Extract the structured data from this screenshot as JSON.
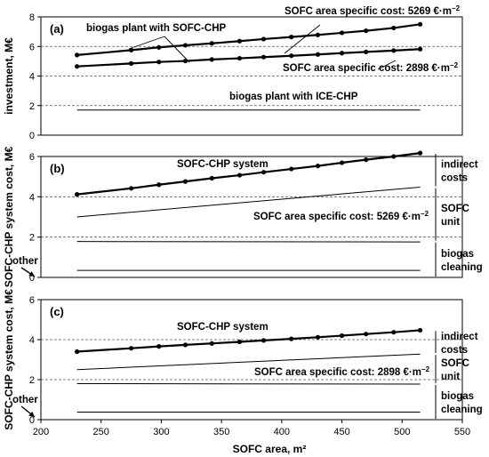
{
  "chart_data": [
    {
      "type": "line",
      "panel_label": "(a)",
      "ylabel": "investment, M€",
      "xlim": [
        200,
        550
      ],
      "ylim": [
        0,
        8
      ],
      "yticks": [
        0,
        2,
        4,
        6,
        8
      ],
      "grid": "horizontal-dashed",
      "series": [
        {
          "style": "thick-markers",
          "x": [
            230,
            275,
            298,
            320,
            342,
            365,
            385,
            408,
            430,
            450,
            470,
            493,
            515
          ],
          "y": [
            5.42,
            5.75,
            5.94,
            6.08,
            6.21,
            6.36,
            6.5,
            6.64,
            6.78,
            6.92,
            7.06,
            7.25,
            7.5
          ]
        },
        {
          "style": "thick-markers",
          "x": [
            230,
            275,
            298,
            320,
            342,
            365,
            385,
            408,
            430,
            450,
            470,
            493,
            515
          ],
          "y": [
            4.65,
            4.85,
            4.95,
            5.02,
            5.12,
            5.2,
            5.28,
            5.37,
            5.46,
            5.55,
            5.63,
            5.72,
            5.82
          ]
        },
        {
          "style": "thin",
          "x": [
            230,
            515
          ],
          "y": [
            1.7,
            1.7
          ]
        }
      ],
      "annotations": [
        {
          "text": "biogas plant with SOFC-CHP"
        },
        {
          "text": "SOFC area specific cost: 5269 €·m"
        },
        {
          "text": "SOFC area specific cost: 2898 €·m"
        },
        {
          "text": "biogas plant with ICE-CHP"
        }
      ]
    },
    {
      "type": "line",
      "panel_label": "(b)",
      "ylabel": "SOFC-CHP system cost, M€",
      "xlim": [
        200,
        550
      ],
      "ylim": [
        0,
        6
      ],
      "yticks": [
        0,
        2,
        4,
        6
      ],
      "grid": "horizontal-dashed",
      "series": [
        {
          "style": "thick-markers",
          "x": [
            230,
            275,
            298,
            320,
            342,
            365,
            385,
            408,
            430,
            450,
            470,
            493,
            515
          ],
          "y": [
            4.12,
            4.42,
            4.6,
            4.76,
            4.92,
            5.07,
            5.22,
            5.38,
            5.53,
            5.69,
            5.84,
            6.0,
            6.17
          ]
        },
        {
          "style": "thin",
          "x": [
            230,
            515
          ],
          "y": [
            3.0,
            4.48
          ]
        },
        {
          "style": "thin",
          "x": [
            230,
            515
          ],
          "y": [
            1.78,
            1.76
          ]
        },
        {
          "style": "thin",
          "x": [
            230,
            515
          ],
          "y": [
            0.35,
            0.35
          ]
        }
      ],
      "annotations": [
        {
          "text": "SOFC-CHP system"
        },
        {
          "text": "SOFC area specific cost: 5269 €·m"
        },
        {
          "text": "other"
        }
      ],
      "brackets": [
        {
          "lines": [
            "indirect",
            "costs"
          ]
        },
        {
          "lines": [
            "SOFC",
            "unit"
          ]
        },
        {
          "lines": [
            "biogas",
            "cleaning"
          ]
        }
      ]
    },
    {
      "type": "line",
      "panel_label": "(c)",
      "ylabel": "SOFC-CHP system cost, M€",
      "xlabel": "SOFC area, m²",
      "xlim": [
        200,
        550
      ],
      "ylim": [
        0,
        6
      ],
      "yticks": [
        0,
        2,
        4,
        6
      ],
      "xticks": [
        200,
        250,
        300,
        350,
        400,
        450,
        500,
        550
      ],
      "grid": "horizontal-dashed",
      "series": [
        {
          "style": "thick-markers",
          "x": [
            230,
            275,
            298,
            320,
            342,
            365,
            385,
            408,
            430,
            450,
            470,
            493,
            515
          ],
          "y": [
            3.4,
            3.57,
            3.66,
            3.74,
            3.81,
            3.89,
            3.96,
            4.04,
            4.12,
            4.2,
            4.28,
            4.37,
            4.47
          ]
        },
        {
          "style": "thin",
          "x": [
            230,
            515
          ],
          "y": [
            2.5,
            3.28
          ]
        },
        {
          "style": "thin",
          "x": [
            230,
            515
          ],
          "y": [
            1.8,
            1.78
          ]
        },
        {
          "style": "thin",
          "x": [
            230,
            515
          ],
          "y": [
            0.38,
            0.38
          ]
        }
      ],
      "annotations": [
        {
          "text": "SOFC-CHP system"
        },
        {
          "text": "SOFC area specific cost: 2898 €·m"
        },
        {
          "text": "other"
        }
      ],
      "brackets": [
        {
          "lines": [
            "indirect",
            "costs"
          ]
        },
        {
          "lines": [
            "SOFC",
            "unit"
          ]
        },
        {
          "lines": [
            "biogas",
            "cleaning"
          ]
        }
      ]
    }
  ],
  "superscript": "−2"
}
